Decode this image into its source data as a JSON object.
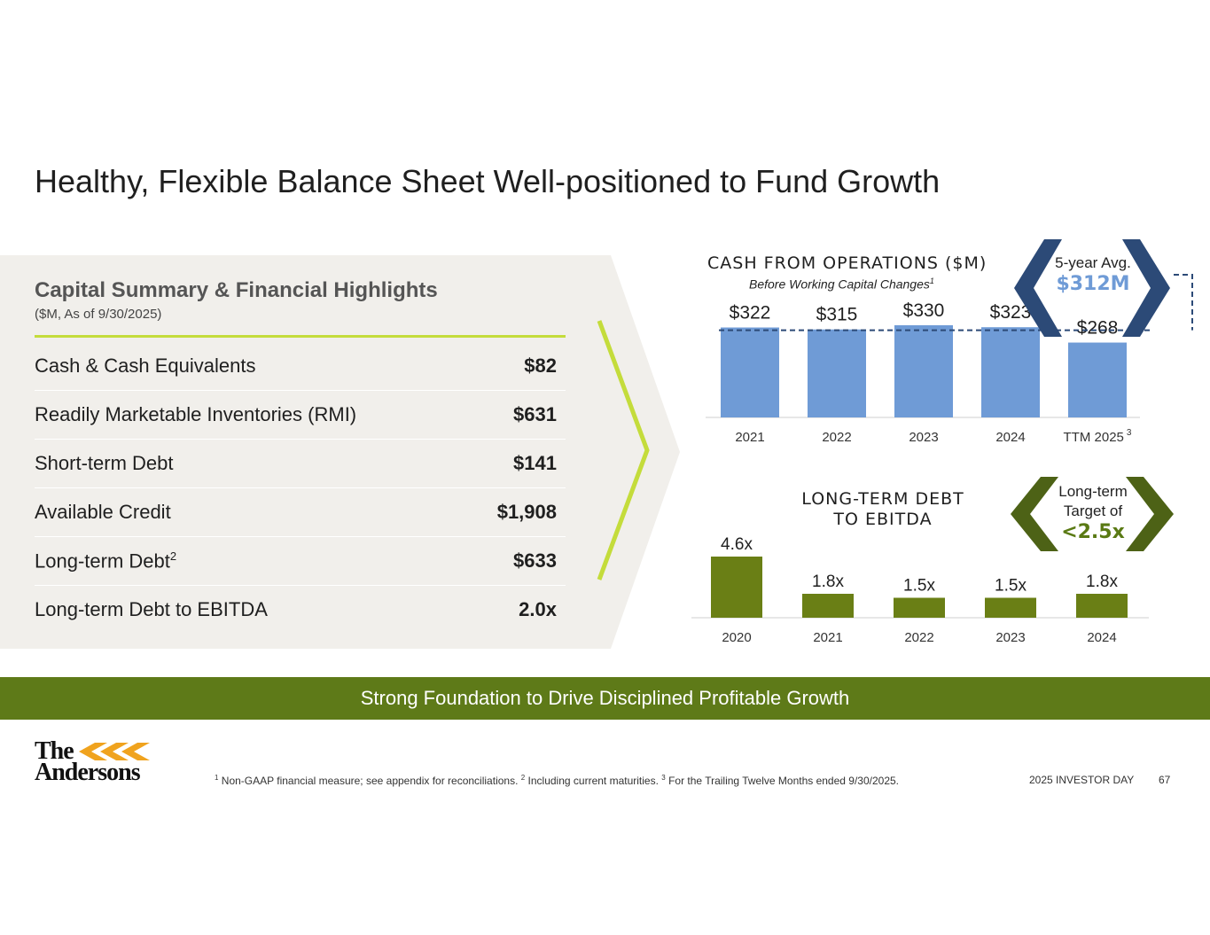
{
  "title": "Healthy, Flexible Balance Sheet Well-positioned to Fund Growth",
  "summary": {
    "heading": "Capital Summary & Financial Highlights",
    "subheading": "($M, As of 9/30/2025)",
    "rows": [
      {
        "label": "Cash & Cash Equivalents",
        "sup": "",
        "value": "$82"
      },
      {
        "label": "Readily Marketable Inventories (RMI)",
        "sup": "",
        "value": "$631"
      },
      {
        "label": "Short-term Debt",
        "sup": "",
        "value": "$141"
      },
      {
        "label": "Available Credit",
        "sup": "",
        "value": "$1,908"
      },
      {
        "label": "Long-term Debt",
        "sup": "2",
        "value": "$633"
      },
      {
        "label": "Long-term Debt to EBITDA",
        "sup": "",
        "value": "2.0x"
      }
    ]
  },
  "cash_chart_labels": {
    "title": "CASH FROM OPERATIONS ($M)",
    "subtitle": "Before Working Capital Changes",
    "subtitle_sup": "1",
    "last_category_sup": "3"
  },
  "avg_badge": {
    "label": "5-year Avg.",
    "value": "$312M",
    "color": "#2c4a77",
    "value_color": "#6f9bd6"
  },
  "debt_chart_labels": {
    "title_line1": "LONG-TERM DEBT",
    "title_line2": "TO EBITDA"
  },
  "target_badge": {
    "line1": "Long-term",
    "line2": "Target of",
    "value": "<2.5x",
    "color": "#4d6216",
    "value_color": "#5a7a14"
  },
  "banner": "Strong Foundation to Drive Disciplined Profitable Growth",
  "logo": {
    "line1": "The",
    "line2": "Andersons"
  },
  "footnote": {
    "n1": "1",
    "t1": " Non-GAAP financial measure; see appendix for reconciliations. ",
    "n2": "2",
    "t2": " Including current maturities. ",
    "n3": "3",
    "t3": " For the Trailing Twelve Months ended 9/30/2025."
  },
  "footer": {
    "event": "2025 INVESTOR DAY",
    "page": "67"
  },
  "colors": {
    "cash_bar": "#6f9bd6",
    "debt_bar": "#6a7f15",
    "banner": "#5e7a18",
    "accent_line": "#c4dc3b"
  },
  "chart_data": [
    {
      "type": "bar",
      "title": "CASH FROM OPERATIONS ($M)",
      "subtitle": "Before Working Capital Changes",
      "categories": [
        "2021",
        "2022",
        "2023",
        "2024",
        "TTM 2025"
      ],
      "values": [
        322,
        315,
        330,
        323,
        268
      ],
      "data_labels": [
        "$322",
        "$315",
        "$330",
        "$323",
        "$268"
      ],
      "reference_line": {
        "label": "5-year Avg.",
        "value": 312
      },
      "ylim": [
        0,
        330
      ]
    },
    {
      "type": "bar",
      "title": "LONG-TERM DEBT TO EBITDA",
      "categories": [
        "2020",
        "2021",
        "2022",
        "2023",
        "2024"
      ],
      "values": [
        4.6,
        1.8,
        1.5,
        1.5,
        1.8
      ],
      "data_labels": [
        "4.6x",
        "1.8x",
        "1.5x",
        "1.5x",
        "1.8x"
      ],
      "target": "<2.5x",
      "ylim": [
        0,
        4.6
      ]
    }
  ]
}
